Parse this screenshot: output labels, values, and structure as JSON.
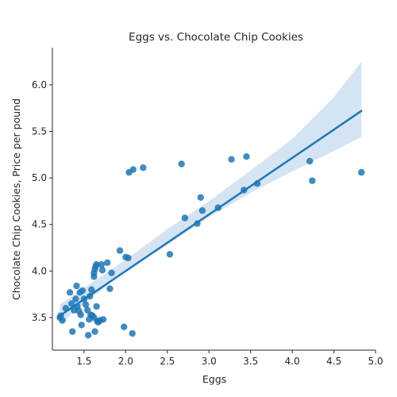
{
  "chart_data": {
    "type": "scatter",
    "title": "Eggs vs. Chocolate Chip Cookies",
    "xlabel": "Eggs",
    "ylabel": "Chocolate Chip Cookies, Price per pound",
    "xlim": [
      1.12,
      5.0
    ],
    "ylim": [
      3.15,
      6.4
    ],
    "xticks": [
      1.5,
      2.0,
      2.5,
      3.0,
      3.5,
      4.0,
      4.5,
      5.0
    ],
    "xtick_labels": [
      "1.5",
      "2.0",
      "2.5",
      "3.0",
      "3.5",
      "4.0",
      "4.5",
      "5.0"
    ],
    "yticks": [
      3.5,
      4.0,
      4.5,
      5.0,
      5.5,
      6.0
    ],
    "ytick_labels": [
      "3.5",
      "4.0",
      "4.5",
      "5.0",
      "5.5",
      "6.0"
    ],
    "grid": false,
    "point_color": "#1f77b4",
    "line_color": "#1f77b4",
    "band_color": "#c6dbef",
    "regression": {
      "x": [
        1.21,
        4.83
      ],
      "y": [
        3.52,
        5.72
      ]
    },
    "confidence_band": {
      "x": [
        1.21,
        1.5,
        2.0,
        2.5,
        3.0,
        3.5,
        4.0,
        4.5,
        4.83
      ],
      "lower": [
        3.42,
        3.65,
        4.0,
        4.28,
        4.58,
        4.84,
        5.07,
        5.29,
        5.44
      ],
      "upper": [
        3.64,
        3.82,
        4.12,
        4.45,
        4.75,
        5.08,
        5.42,
        5.87,
        6.25
      ]
    },
    "points": [
      {
        "x": 1.21,
        "y": 3.5
      },
      {
        "x": 1.22,
        "y": 3.52
      },
      {
        "x": 1.24,
        "y": 3.47
      },
      {
        "x": 1.28,
        "y": 3.6
      },
      {
        "x": 1.33,
        "y": 3.77
      },
      {
        "x": 1.35,
        "y": 3.65
      },
      {
        "x": 1.36,
        "y": 3.35
      },
      {
        "x": 1.38,
        "y": 3.58
      },
      {
        "x": 1.4,
        "y": 3.7
      },
      {
        "x": 1.41,
        "y": 3.84
      },
      {
        "x": 1.42,
        "y": 3.62
      },
      {
        "x": 1.44,
        "y": 3.57
      },
      {
        "x": 1.45,
        "y": 3.77
      },
      {
        "x": 1.46,
        "y": 3.53
      },
      {
        "x": 1.47,
        "y": 3.42
      },
      {
        "x": 1.48,
        "y": 3.79
      },
      {
        "x": 1.5,
        "y": 3.7
      },
      {
        "x": 1.52,
        "y": 3.64
      },
      {
        "x": 1.54,
        "y": 3.58
      },
      {
        "x": 1.55,
        "y": 3.31
      },
      {
        "x": 1.56,
        "y": 3.48
      },
      {
        "x": 1.57,
        "y": 3.73
      },
      {
        "x": 1.58,
        "y": 3.53
      },
      {
        "x": 1.59,
        "y": 3.8
      },
      {
        "x": 1.6,
        "y": 3.52
      },
      {
        "x": 1.62,
        "y": 3.5
      },
      {
        "x": 1.62,
        "y": 3.94
      },
      {
        "x": 1.62,
        "y": 3.98
      },
      {
        "x": 1.63,
        "y": 4.02
      },
      {
        "x": 1.63,
        "y": 3.35
      },
      {
        "x": 1.64,
        "y": 4.05
      },
      {
        "x": 1.65,
        "y": 4.07
      },
      {
        "x": 1.65,
        "y": 3.62
      },
      {
        "x": 1.66,
        "y": 3.46
      },
      {
        "x": 1.67,
        "y": 3.45
      },
      {
        "x": 1.69,
        "y": 3.47
      },
      {
        "x": 1.71,
        "y": 4.07
      },
      {
        "x": 1.72,
        "y": 4.01
      },
      {
        "x": 1.73,
        "y": 3.48
      },
      {
        "x": 1.78,
        "y": 4.09
      },
      {
        "x": 1.81,
        "y": 3.81
      },
      {
        "x": 1.83,
        "y": 3.98
      },
      {
        "x": 1.93,
        "y": 4.22
      },
      {
        "x": 1.98,
        "y": 3.4
      },
      {
        "x": 2.0,
        "y": 4.15
      },
      {
        "x": 2.03,
        "y": 4.14
      },
      {
        "x": 2.04,
        "y": 5.06
      },
      {
        "x": 2.08,
        "y": 3.33
      },
      {
        "x": 2.09,
        "y": 5.09
      },
      {
        "x": 2.21,
        "y": 5.11
      },
      {
        "x": 2.53,
        "y": 4.18
      },
      {
        "x": 2.67,
        "y": 5.15
      },
      {
        "x": 2.71,
        "y": 4.57
      },
      {
        "x": 2.86,
        "y": 4.51
      },
      {
        "x": 2.9,
        "y": 4.79
      },
      {
        "x": 2.92,
        "y": 4.65
      },
      {
        "x": 3.11,
        "y": 4.68
      },
      {
        "x": 3.27,
        "y": 5.2
      },
      {
        "x": 3.42,
        "y": 4.87
      },
      {
        "x": 3.45,
        "y": 5.23
      },
      {
        "x": 3.58,
        "y": 4.94
      },
      {
        "x": 4.21,
        "y": 5.18
      },
      {
        "x": 4.24,
        "y": 4.97
      },
      {
        "x": 4.83,
        "y": 5.06
      }
    ]
  }
}
